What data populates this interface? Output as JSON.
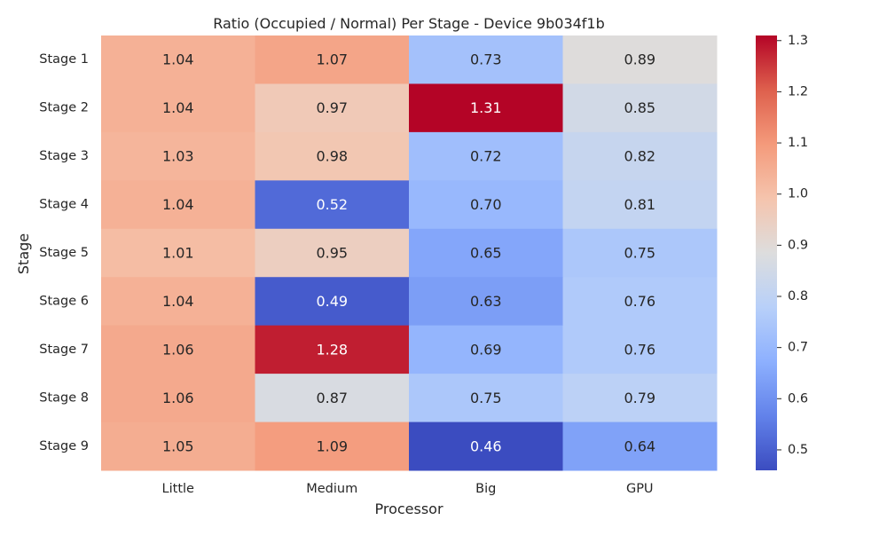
{
  "chart_data": {
    "type": "heatmap",
    "title": "Ratio (Occupied / Normal) Per Stage - Device 9b034f1b",
    "xlabel": "Processor",
    "ylabel": "Stage",
    "x_categories": [
      "Little",
      "Medium",
      "Big",
      "GPU"
    ],
    "y_categories": [
      "Stage 1",
      "Stage 2",
      "Stage 3",
      "Stage 4",
      "Stage 5",
      "Stage 6",
      "Stage 7",
      "Stage 8",
      "Stage 9"
    ],
    "values": [
      [
        1.04,
        1.07,
        0.73,
        0.89
      ],
      [
        1.04,
        0.97,
        1.31,
        0.85
      ],
      [
        1.03,
        0.98,
        0.72,
        0.82
      ],
      [
        1.04,
        0.52,
        0.7,
        0.81
      ],
      [
        1.01,
        0.95,
        0.65,
        0.75
      ],
      [
        1.04,
        0.49,
        0.63,
        0.76
      ],
      [
        1.06,
        1.28,
        0.69,
        0.76
      ],
      [
        1.06,
        0.87,
        0.75,
        0.79
      ],
      [
        1.05,
        1.09,
        0.46,
        0.64
      ]
    ],
    "value_format": "0.00",
    "colormap": "coolwarm",
    "colorbar": {
      "range": [
        0.46,
        1.31
      ],
      "ticks": [
        0.5,
        0.6,
        0.7,
        0.8,
        0.9,
        1.0,
        1.1,
        1.2,
        1.3
      ],
      "tick_labels": [
        "0.5",
        "0.6",
        "0.7",
        "0.8",
        "0.9",
        "1.0",
        "1.1",
        "1.2",
        "1.3"
      ]
    },
    "grid": false,
    "legend": "colorbar-right"
  }
}
